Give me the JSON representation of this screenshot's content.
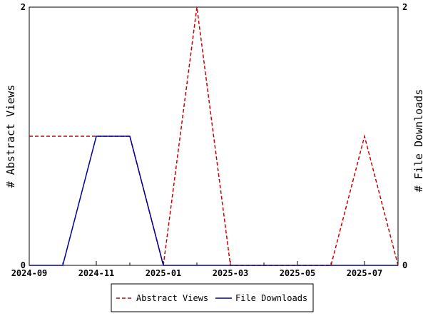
{
  "chart_data": {
    "type": "line",
    "x": [
      "2024-09",
      "2024-10",
      "2024-11",
      "2024-12",
      "2025-01",
      "2025-02",
      "2025-03",
      "2025-04",
      "2025-05",
      "2025-06",
      "2025-07",
      "2025-08"
    ],
    "x_tick_labels": [
      "2024-09",
      "2024-11",
      "2025-01",
      "2025-03",
      "2025-05",
      "2025-07"
    ],
    "series": [
      {
        "name": "Abstract Views",
        "axis": "left",
        "color": "#cc0000",
        "dash": "dashed",
        "values": [
          1,
          1,
          1,
          1,
          0,
          2,
          0,
          0,
          0,
          0,
          1,
          0
        ]
      },
      {
        "name": "File Downloads",
        "axis": "right",
        "color": "#000099",
        "dash": "solid",
        "values": [
          0,
          0,
          1,
          1,
          0,
          0,
          0,
          0,
          0,
          0,
          0,
          0
        ]
      }
    ],
    "ylabel": "# Abstract Views",
    "y2label": "# File Downloads",
    "ylim": [
      0,
      2
    ],
    "y2lim": [
      0,
      2
    ],
    "y_ticks": [
      "0",
      "2"
    ],
    "y2_ticks": [
      "0",
      "2"
    ],
    "grid": false,
    "legend_position": "bottom"
  }
}
